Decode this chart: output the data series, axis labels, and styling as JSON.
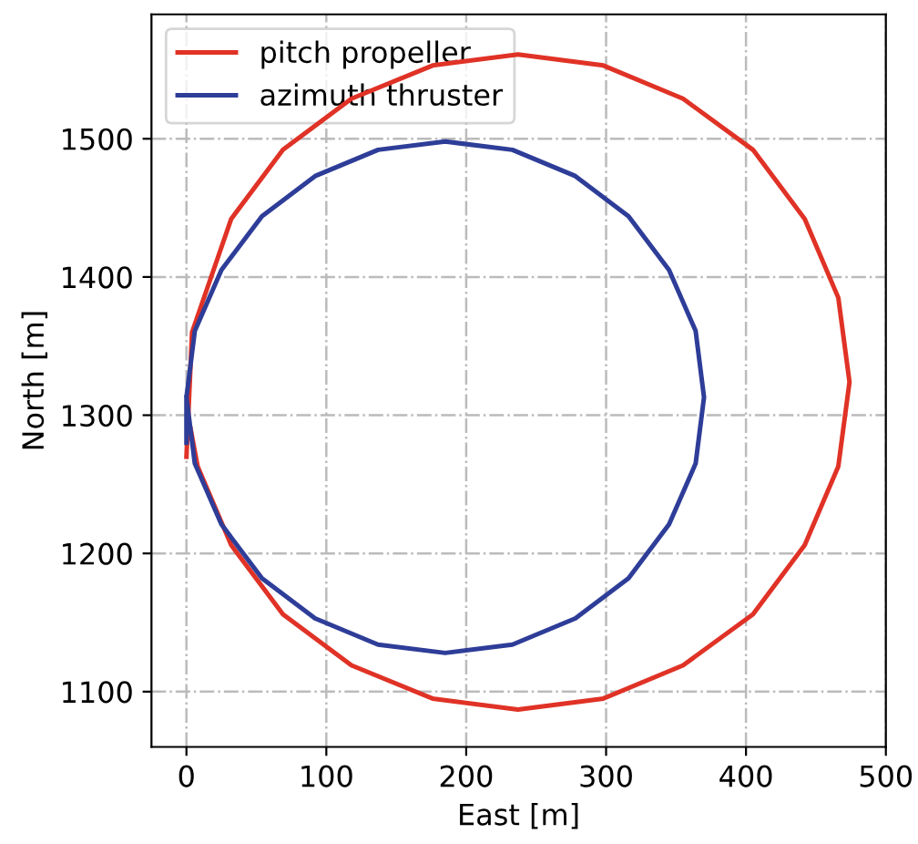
{
  "chart_data": {
    "type": "line",
    "xlabel": "East [m]",
    "ylabel": "North [m]",
    "xlim": [
      -25,
      500
    ],
    "ylim": [
      1060,
      1590
    ],
    "xticks": [
      0,
      100,
      200,
      300,
      400,
      500
    ],
    "yticks": [
      1100,
      1200,
      1300,
      1400,
      1500
    ],
    "grid": true,
    "legend": "top left",
    "line_style": "solid",
    "marker": "none",
    "series": [
      {
        "name": "pitch propeller",
        "color": "#e03226",
        "x": [
          0,
          4,
          32,
          69,
          118,
          176,
          237,
          298,
          355,
          405,
          442,
          466,
          474,
          466,
          442,
          405,
          355,
          298,
          237,
          176,
          118,
          69,
          32,
          8,
          3
        ],
        "values": [
          1270,
          1360,
          1442,
          1492,
          1529,
          1553,
          1561,
          1553,
          1529,
          1492,
          1442,
          1385,
          1324,
          1263,
          1206,
          1156,
          1119,
          1095,
          1087,
          1095,
          1119,
          1156,
          1206,
          1263,
          1290
        ]
      },
      {
        "name": "azimuth thruster",
        "color": "#2e3d98",
        "x": [
          0,
          0,
          6,
          25,
          54,
          92,
          137,
          185,
          233,
          278,
          316,
          345,
          364,
          370,
          364,
          345,
          316,
          278,
          233,
          185,
          137,
          92,
          54,
          25,
          6,
          0
        ],
        "values": [
          1280,
          1313,
          1361,
          1405,
          1444,
          1473,
          1492,
          1498,
          1492,
          1473,
          1444,
          1405,
          1361,
          1313,
          1265,
          1221,
          1182,
          1153,
          1134,
          1128,
          1134,
          1153,
          1182,
          1221,
          1265,
          1313
        ]
      }
    ]
  }
}
